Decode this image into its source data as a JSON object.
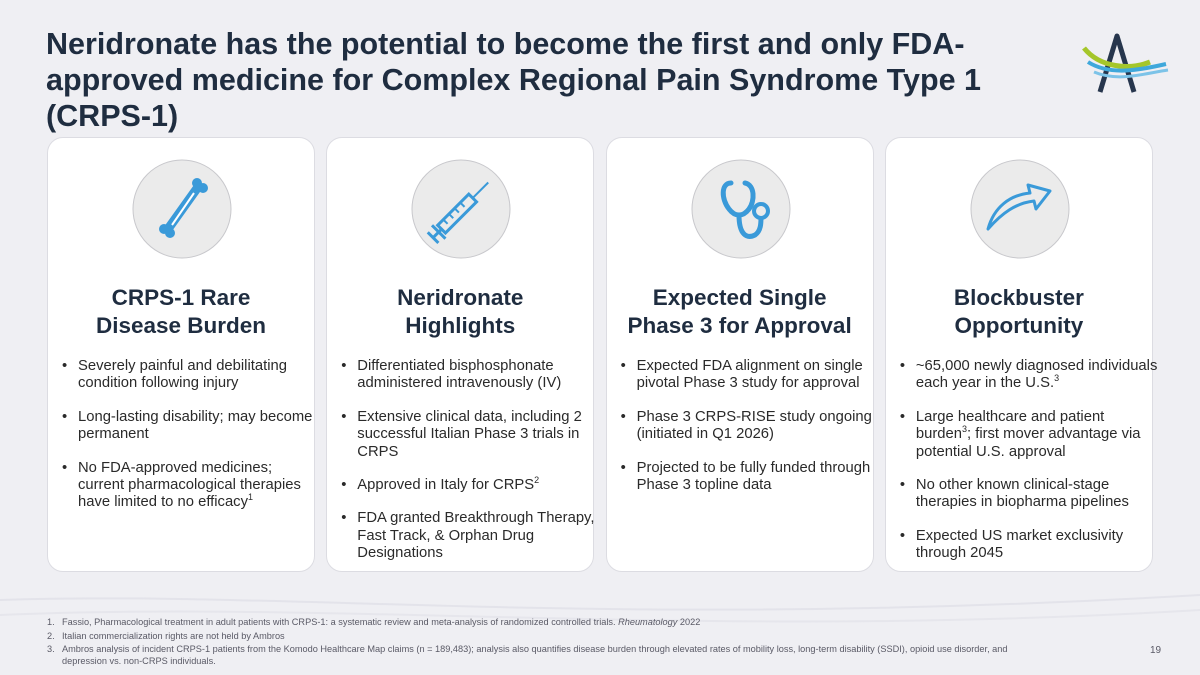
{
  "title": "Neridronate has the potential to become the first and only FDA-approved medicine for Complex Regional Pain Syndrome Type 1 (CRPS-1)",
  "cards": [
    {
      "heading": [
        "CRPS-1 Rare",
        "Disease Burden"
      ],
      "icon": "bone",
      "bullets": [
        "Severely painful and debilitating condition following injury",
        "Long-lasting disability; may become permanent",
        [
          {
            "text": "No FDA-approved medicines; current pharmacological therapies have limited to no efficacy"
          },
          {
            "sup": "1"
          }
        ]
      ]
    },
    {
      "heading": [
        "Neridronate",
        "Highlights"
      ],
      "icon": "syringe",
      "bullets": [
        "Differentiated bisphosphonate administered intravenously (IV)",
        "Extensive clinical data, including 2 successful Italian Phase 3 trials in CRPS",
        [
          {
            "text": "Approved in Italy for CRPS"
          },
          {
            "sup": "2"
          }
        ],
        "FDA granted Breakthrough Therapy, Fast Track, & Orphan Drug Designations"
      ]
    },
    {
      "heading": [
        "Expected Single",
        "Phase 3 for Approval"
      ],
      "icon": "stethoscope",
      "bullets": [
        "Expected FDA alignment on single pivotal Phase 3 study for approval",
        "Phase 3 CRPS-RISE study ongoing (initiated in Q1 2026)",
        "Projected to be fully funded through Phase 3 topline data"
      ]
    },
    {
      "heading": [
        "Blockbuster",
        "Opportunity"
      ],
      "icon": "arrow",
      "bullets": [
        [
          {
            "text": "~65,000 newly diagnosed individuals each year in the U.S."
          },
          {
            "sup": "3"
          }
        ],
        [
          {
            "text": "Large healthcare and patient burden"
          },
          {
            "sup": "3"
          },
          {
            "text": "; first mover advantage via potential U.S. approval"
          }
        ],
        "No other known clinical-stage therapies in biopharma pipelines",
        "Expected US market exclusivity through 2045"
      ]
    }
  ],
  "footnotes": [
    {
      "number": "1.",
      "parts": [
        {
          "text": "Fassio, Pharmacological treatment in adult patients with CRPS-1: a systematic review and meta-analysis of randomized controlled trials. "
        },
        {
          "italic": "Rheumatology"
        },
        {
          "text": " 2022"
        }
      ]
    },
    {
      "number": "2.",
      "parts": [
        {
          "text": "Italian commercialization rights are not held by Ambros"
        }
      ]
    },
    {
      "number": "3.",
      "parts": [
        {
          "text": "Ambros analysis of incident CRPS-1 patients from the Komodo Healthcare Map claims (n = 189,483); analysis also quantifies disease burden through elevated rates of mobility loss, long-term disability (SSDI), opioid use disorder, and depression vs. non-CRPS individuals."
        }
      ]
    }
  ],
  "page_number": "19"
}
